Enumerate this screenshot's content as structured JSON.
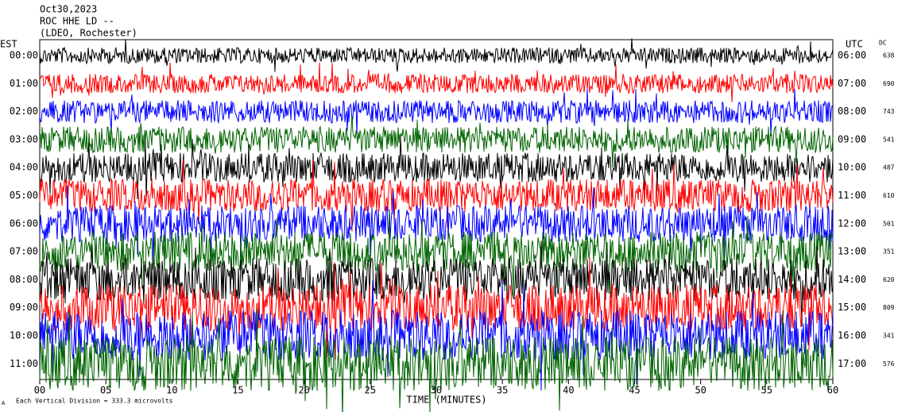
{
  "header": {
    "date": "Oct30,2023",
    "station": "ROC HHE LD --",
    "network": "(LDEO, Rochester)"
  },
  "left_label": "EST",
  "right_label": "UTC",
  "dc_label": "DC",
  "rows": [
    {
      "est": "00:00",
      "utc": "06:00",
      "dc": "638",
      "color": "#000000"
    },
    {
      "est": "01:00",
      "utc": "07:00",
      "dc": "690",
      "color": "#ff0000"
    },
    {
      "est": "02:00",
      "utc": "08:00",
      "dc": "743",
      "color": "#0000ff"
    },
    {
      "est": "03:00",
      "utc": "09:00",
      "dc": "541",
      "color": "#006400"
    },
    {
      "est": "04:00",
      "utc": "10:00",
      "dc": "487",
      "color": "#000000"
    },
    {
      "est": "05:00",
      "utc": "11:00",
      "dc": "610",
      "color": "#ff0000"
    },
    {
      "est": "06:00",
      "utc": "12:00",
      "dc": "501",
      "color": "#0000ff"
    },
    {
      "est": "07:00",
      "utc": "13:00",
      "dc": "351",
      "color": "#006400"
    },
    {
      "est": "08:00",
      "utc": "14:00",
      "dc": "620",
      "color": "#000000"
    },
    {
      "est": "09:00",
      "utc": "15:00",
      "dc": "809",
      "color": "#ff0000"
    },
    {
      "est": "10:00",
      "utc": "16:00",
      "dc": "341",
      "color": "#0000ff"
    },
    {
      "est": "11:00",
      "utc": "17:00",
      "dc": "576",
      "color": "#006400"
    }
  ],
  "x_ticks": [
    "00",
    "05",
    "10",
    "15",
    "20",
    "25",
    "30",
    "35",
    "40",
    "45",
    "50",
    "55",
    "60"
  ],
  "x_label": "TIME (MINUTES)",
  "footer": "Each Vertical Division = 333.3 microvolts",
  "corner_mark": "A"
}
